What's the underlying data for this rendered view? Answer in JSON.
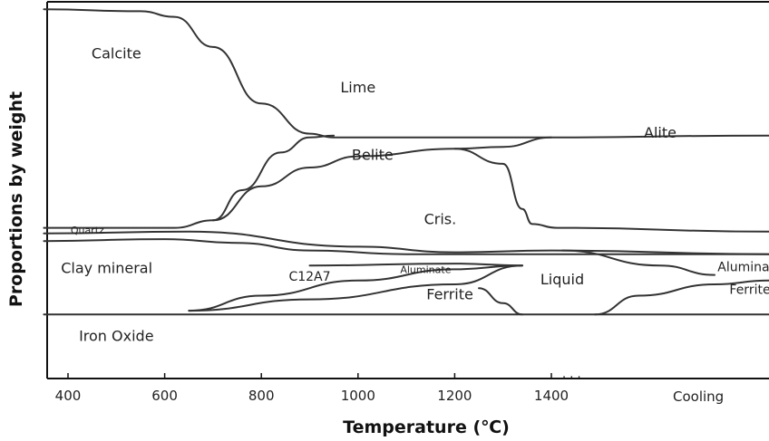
{
  "chart_data": {
    "type": "area",
    "xlabel": "Temperature (℃)",
    "ylabel": "Proportions by weight",
    "xlim": [
      350,
      1800
    ],
    "x_ticks": [
      "400",
      "600",
      "800",
      "1000",
      "1200",
      "1400"
    ],
    "cooling_label": "Cooling",
    "ellipsis": ". . .",
    "regions": [
      {
        "label": "Calcite",
        "x": 500,
        "y": 0.85,
        "size": "large"
      },
      {
        "label": "Lime",
        "x": 1000,
        "y": 0.76,
        "size": "large"
      },
      {
        "label": "Belite",
        "x": 1030,
        "y": 0.58,
        "size": "large"
      },
      {
        "label": "Alite",
        "x": 1600,
        "y": 0.64,
        "size": "large"
      },
      {
        "label": "Cris.",
        "x": 1170,
        "y": 0.41,
        "size": "large"
      },
      {
        "label": "Quartz",
        "x": 440,
        "y": 0.385,
        "size": "small"
      },
      {
        "label": "Clay mineral",
        "x": 480,
        "y": 0.28,
        "size": "large"
      },
      {
        "label": "C12A7",
        "x": 900,
        "y": 0.26,
        "size": "medium"
      },
      {
        "label": "Aluminate",
        "x": 1140,
        "y": 0.28,
        "size": "small"
      },
      {
        "label": "Ferrite",
        "x": 1190,
        "y": 0.21,
        "size": "large"
      },
      {
        "label": "Liquid",
        "x": 1420,
        "y": 0.25,
        "size": "large"
      },
      {
        "label": "Aluminate",
        "x": 1765,
        "y": 0.285,
        "size": "medium"
      },
      {
        "label": "Ferrite",
        "x": 1765,
        "y": 0.225,
        "size": "medium"
      },
      {
        "label": "Iron Oxide",
        "x": 500,
        "y": 0.1,
        "size": "large"
      }
    ],
    "boundaries": [
      {
        "name": "calcite-top",
        "points": [
          [
            350,
            0.98
          ],
          [
            550,
            0.975
          ],
          [
            620,
            0.96
          ],
          [
            700,
            0.88
          ],
          [
            800,
            0.73
          ],
          [
            900,
            0.65
          ],
          [
            950,
            0.64
          ],
          [
            1380,
            0.64
          ],
          [
            1800,
            0.645
          ]
        ]
      },
      {
        "name": "lime-upper",
        "points": [
          [
            700,
            0.42
          ],
          [
            760,
            0.5
          ],
          [
            840,
            0.6
          ],
          [
            900,
            0.64
          ],
          [
            950,
            0.645
          ]
        ]
      },
      {
        "name": "belite-top",
        "points": [
          [
            700,
            0.42
          ],
          [
            800,
            0.51
          ],
          [
            900,
            0.56
          ],
          [
            1000,
            0.59
          ],
          [
            1200,
            0.61
          ],
          [
            1300,
            0.615
          ],
          [
            1400,
            0.64
          ]
        ]
      },
      {
        "name": "alite-bottom",
        "points": [
          [
            1200,
            0.61
          ],
          [
            1300,
            0.57
          ],
          [
            1340,
            0.45
          ],
          [
            1360,
            0.41
          ],
          [
            1410,
            0.4
          ],
          [
            1800,
            0.39
          ]
        ]
      },
      {
        "name": "quartz-top",
        "points": [
          [
            350,
            0.4
          ],
          [
            620,
            0.4
          ],
          [
            700,
            0.42
          ]
        ]
      },
      {
        "name": "quartz-bottom",
        "points": [
          [
            350,
            0.365
          ],
          [
            600,
            0.37
          ],
          [
            750,
            0.36
          ],
          [
            900,
            0.34
          ],
          [
            1100,
            0.33
          ],
          [
            1800,
            0.33
          ]
        ]
      },
      {
        "name": "clay-top",
        "points": [
          [
            350,
            0.385
          ],
          [
            650,
            0.39
          ],
          [
            1000,
            0.35
          ],
          [
            1200,
            0.335
          ],
          [
            1400,
            0.34
          ],
          [
            1800,
            0.33
          ]
        ]
      },
      {
        "name": "iron-oxide-top",
        "points": [
          [
            350,
            0.17
          ],
          [
            1800,
            0.17
          ]
        ]
      },
      {
        "name": "c12a7-upper",
        "points": [
          [
            650,
            0.18
          ],
          [
            800,
            0.22
          ],
          [
            1000,
            0.26
          ],
          [
            1200,
            0.29
          ],
          [
            1340,
            0.3
          ]
        ]
      },
      {
        "name": "c12a7-lower",
        "points": [
          [
            650,
            0.18
          ],
          [
            900,
            0.21
          ],
          [
            1200,
            0.25
          ],
          [
            1340,
            0.3
          ]
        ]
      },
      {
        "name": "aluminate-upper",
        "points": [
          [
            900,
            0.3
          ],
          [
            1200,
            0.305
          ],
          [
            1340,
            0.3
          ]
        ]
      },
      {
        "name": "liquid-left",
        "points": [
          [
            1250,
            0.24
          ],
          [
            1300,
            0.2
          ],
          [
            1340,
            0.17
          ]
        ]
      },
      {
        "name": "liquid-right",
        "points": [
          [
            1480,
            0.17
          ],
          [
            1560,
            0.22
          ],
          [
            1700,
            0.25
          ],
          [
            1800,
            0.26
          ]
        ]
      },
      {
        "name": "aluminate-cooling",
        "points": [
          [
            1420,
            0.34
          ],
          [
            1600,
            0.3
          ],
          [
            1700,
            0.275
          ]
        ]
      }
    ]
  }
}
